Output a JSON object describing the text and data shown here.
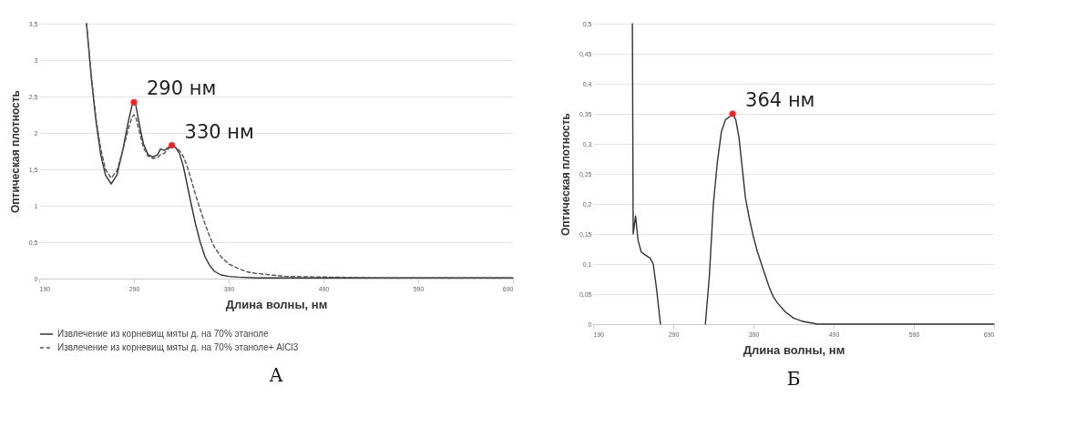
{
  "chart_data": [
    {
      "type": "line",
      "title": "А",
      "xlabel": "Длина волны, нм",
      "ylabel": "Оптическая плотность",
      "xlim": [
        190,
        690
      ],
      "xticks": [
        190,
        290,
        390,
        490,
        590,
        690
      ],
      "ylim": [
        0,
        3.5
      ],
      "yticks": [
        {
          "value": 0,
          "label": "0"
        },
        {
          "value": 0.5,
          "label": "0,5"
        },
        {
          "value": 1,
          "label": "1"
        },
        {
          "value": 1.5,
          "label": "1,5"
        },
        {
          "value": 2,
          "label": "2"
        },
        {
          "value": 2.5,
          "label": "2,5"
        },
        {
          "value": 3,
          "label": "3"
        },
        {
          "value": 3.5,
          "label": "3,5"
        }
      ],
      "grid": "y",
      "legend": "bottom",
      "series": [
        {
          "name": "Извлечение из корневищ мяты д. на 70% этаноле",
          "color": "#333333",
          "line_style": "solid",
          "x": [
            240,
            245,
            250,
            255,
            260,
            266,
            272,
            278,
            284,
            288,
            290,
            292,
            296,
            300,
            305,
            310,
            315,
            318,
            322,
            326,
            330,
            334,
            338,
            342,
            346,
            350,
            355,
            360,
            365,
            370,
            375,
            382,
            390,
            400,
            420,
            450,
            500,
            550,
            600,
            650,
            690
          ],
          "values": [
            3.5,
            2.75,
            2.15,
            1.7,
            1.42,
            1.3,
            1.42,
            1.75,
            2.15,
            2.38,
            2.42,
            2.38,
            2.1,
            1.85,
            1.7,
            1.67,
            1.7,
            1.78,
            1.76,
            1.8,
            1.83,
            1.8,
            1.72,
            1.55,
            1.3,
            1.05,
            0.75,
            0.5,
            0.3,
            0.18,
            0.1,
            0.05,
            0.03,
            0.02,
            0.01,
            0.01,
            0.01,
            0.01,
            0.01,
            0.01,
            0.01
          ]
        },
        {
          "name": "Извлечение из корневищ мяты д. на 70% этаноле+ AlCl3",
          "color": "#555555",
          "line_style": "dashed",
          "x": [
            240,
            245,
            250,
            255,
            260,
            266,
            272,
            278,
            284,
            288,
            290,
            292,
            296,
            300,
            305,
            310,
            315,
            318,
            322,
            326,
            330,
            334,
            338,
            342,
            346,
            350,
            355,
            360,
            365,
            370,
            375,
            382,
            390,
            400,
            410,
            420,
            450,
            500,
            550,
            600,
            650,
            690
          ],
          "values": [
            3.5,
            2.8,
            2.2,
            1.78,
            1.5,
            1.38,
            1.48,
            1.75,
            2.05,
            2.22,
            2.25,
            2.22,
            2.0,
            1.8,
            1.68,
            1.65,
            1.66,
            1.7,
            1.72,
            1.78,
            1.82,
            1.8,
            1.76,
            1.68,
            1.55,
            1.38,
            1.15,
            0.95,
            0.75,
            0.58,
            0.43,
            0.3,
            0.2,
            0.14,
            0.09,
            0.07,
            0.03,
            0.02,
            0.01,
            0.01,
            0.01,
            0.01
          ]
        },
        {
          "type": "scatter",
          "color": "#ff2020",
          "marker": "circle",
          "x": [
            290,
            330
          ],
          "values": [
            2.42,
            1.83
          ]
        }
      ],
      "annotations": [
        {
          "text": "290 нм",
          "x": 290,
          "y": 2.42
        },
        {
          "text": "330 нм",
          "x": 330,
          "y": 1.83
        }
      ]
    },
    {
      "type": "line",
      "title": "Б",
      "xlabel": "Длина волны, нм",
      "ylabel": "Оптическая плотность",
      "xlim": [
        190,
        690
      ],
      "xticks": [
        190,
        290,
        390,
        490,
        590,
        690
      ],
      "ylim": [
        0,
        0.5
      ],
      "yticks": [
        {
          "value": 0,
          "label": "0"
        },
        {
          "value": 0.05,
          "label": "0,05"
        },
        {
          "value": 0.1,
          "label": "0,1"
        },
        {
          "value": 0.15,
          "label": "0,15"
        },
        {
          "value": 0.2,
          "label": "0,2"
        },
        {
          "value": 0.25,
          "label": "0,25"
        },
        {
          "value": 0.3,
          "label": "0,3"
        },
        {
          "value": 0.35,
          "label": "0,35"
        },
        {
          "value": 0.4,
          "label": "0,4"
        },
        {
          "value": 0.45,
          "label": "0,45"
        },
        {
          "value": 0.5,
          "label": "0,5"
        }
      ],
      "grid": "y",
      "series": [
        {
          "color": "#333333",
          "line_style": "solid",
          "x": [
            239,
            240,
            243,
            246,
            250,
            255,
            261,
            265,
            269,
            274,
            300,
            330,
            335,
            340,
            345,
            350,
            355,
            360,
            364,
            368,
            372,
            376,
            380,
            385,
            390,
            395,
            400,
            405,
            410,
            415,
            420,
            430,
            440,
            450,
            470,
            500,
            550,
            600,
            650,
            690
          ],
          "values": [
            0.5,
            0.15,
            0.18,
            0.14,
            0.12,
            0.115,
            0.11,
            0.1,
            0.06,
            0,
            null,
            0,
            0.08,
            0.2,
            0.27,
            0.32,
            0.34,
            0.345,
            0.35,
            0.34,
            0.31,
            0.26,
            0.21,
            0.175,
            0.145,
            0.12,
            0.1,
            0.08,
            0.06,
            0.045,
            0.035,
            0.02,
            0.01,
            0.005,
            0,
            0,
            0,
            0,
            0,
            0
          ]
        },
        {
          "type": "scatter",
          "color": "#ff2020",
          "marker": "circle",
          "x": [
            364
          ],
          "values": [
            0.35
          ]
        }
      ],
      "annotations": [
        {
          "text": "364 нм",
          "x": 364,
          "y": 0.35
        }
      ]
    }
  ]
}
